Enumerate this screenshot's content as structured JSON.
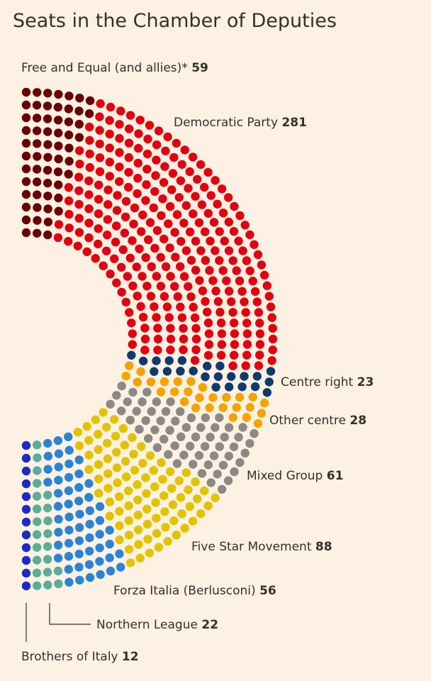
{
  "chart_data": {
    "type": "parliament",
    "title": "Seats in the Chamber of Deputies",
    "unit": "seats",
    "total_seats": 630,
    "series": [
      {
        "name": "Free and Equal (and allies)*",
        "value": 59,
        "color": "#6b0000"
      },
      {
        "name": "Democratic Party",
        "value": 281,
        "color": "#e3000f"
      },
      {
        "name": "Centre right",
        "value": 23,
        "color": "#0f3a6e"
      },
      {
        "name": "Other centre",
        "value": 28,
        "color": "#f5a300"
      },
      {
        "name": "Mixed Group",
        "value": 61,
        "color": "#8c8984"
      },
      {
        "name": "Five Star Movement",
        "value": 88,
        "color": "#e3c300"
      },
      {
        "name": "Forza Italia (Berlusconi)",
        "value": 56,
        "color": "#2a84d6"
      },
      {
        "name": "Northern League",
        "value": 22,
        "color": "#5aae98"
      },
      {
        "name": "Brothers of Italy",
        "value": 12,
        "color": "#1d2ac4"
      }
    ]
  }
}
